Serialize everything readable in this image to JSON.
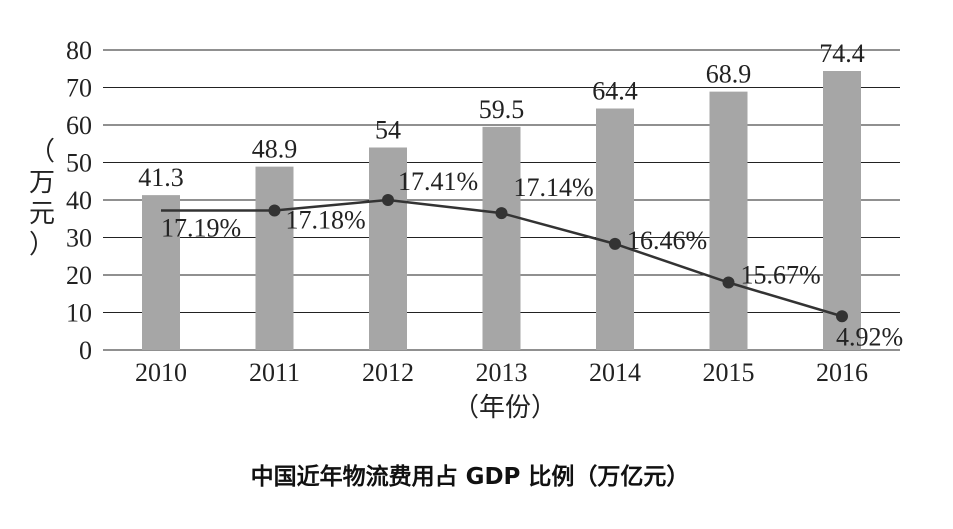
{
  "chart_data": {
    "type": "bar",
    "title": "中国近年物流费用占 GDP 比例（万亿元）",
    "xlabel": "（年份）",
    "ylabel": "（万元）",
    "ylim": [
      0,
      80
    ],
    "yticks": [
      "0",
      "10",
      "20",
      "30",
      "40",
      "50",
      "60",
      "70",
      "80"
    ],
    "categories": [
      "2010",
      "2011",
      "2012",
      "2013",
      "2014",
      "2015",
      "2016"
    ],
    "grid": true,
    "series": [
      {
        "type": "bar",
        "values": [
          41.3,
          48.9,
          54,
          59.5,
          64.4,
          68.9,
          74.4
        ],
        "labels": [
          "41.3",
          "48.9",
          "54",
          "59.5",
          "64.4",
          "68.9",
          "74.4"
        ],
        "color": "#a6a6a6"
      },
      {
        "type": "line",
        "values": [
          17.19,
          17.18,
          17.41,
          17.14,
          16.46,
          15.67,
          4.92
        ],
        "labels": [
          "17.19%",
          "17.18%",
          "17.41%",
          "17.14%",
          "16.46%",
          "15.67%",
          "4.92%"
        ],
        "drawn_on_bar_scale": [
          37.2,
          37.2,
          40,
          36.5,
          28.3,
          18,
          9
        ],
        "color": "#333333"
      }
    ]
  }
}
